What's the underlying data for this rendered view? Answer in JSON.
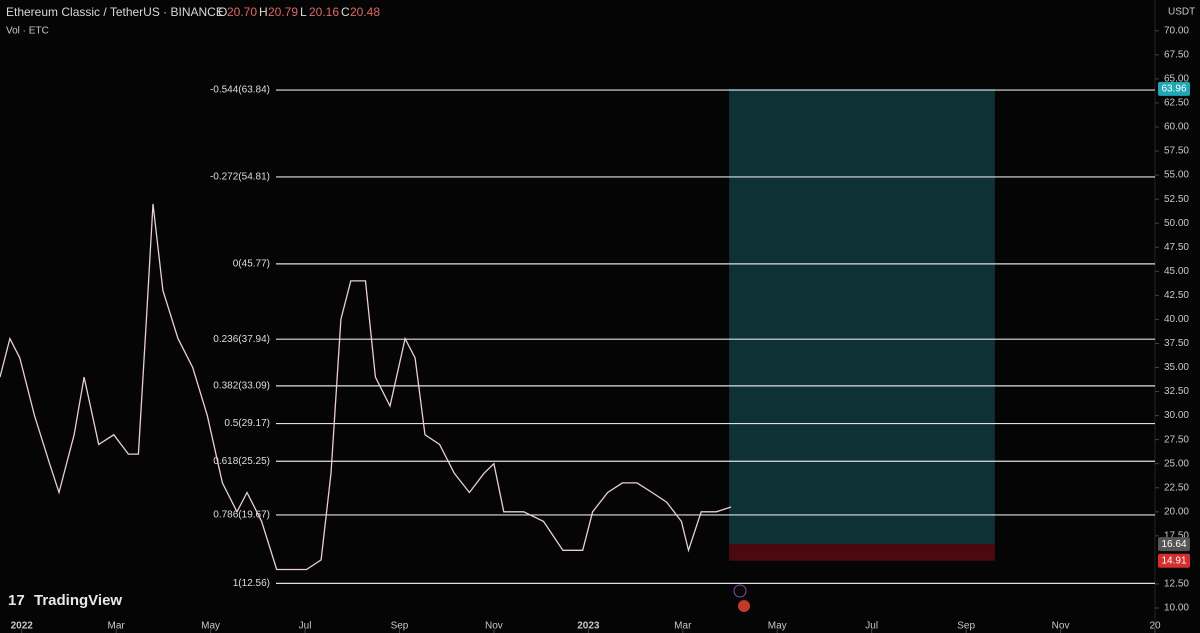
{
  "chart_data": {
    "type": "line",
    "title": "Ethereum Classic / TetherUS · BINANCE",
    "ohlc": [
      {
        "key": "O",
        "value": "20.70"
      },
      {
        "key": "H",
        "value": "20.79"
      },
      {
        "key": "L",
        "value": "20.16"
      },
      {
        "key": "C",
        "value": "20.48"
      }
    ],
    "volume_label": "Vol · ETC",
    "currency": "USDT",
    "brand": "TradingView",
    "color": "#e9cfcf",
    "x": [
      -0.46,
      -0.25,
      -0.04,
      0.27,
      0.59,
      0.79,
      1.11,
      1.32,
      1.63,
      1.95,
      2.26,
      2.47,
      2.64,
      2.78,
      2.99,
      3.31,
      3.62,
      3.93,
      4.25,
      4.56,
      4.77,
      5.08,
      5.4,
      5.71,
      6.03,
      6.34,
      6.55,
      6.76,
      6.97,
      7.28,
      7.49,
      7.8,
      8.12,
      8.33,
      8.54,
      8.85,
      9.16,
      9.48,
      9.79,
      10.0,
      10.21,
      10.63,
      11.05,
      11.46,
      11.88,
      12.09,
      12.41,
      12.72,
      13.03,
      13.35,
      13.66,
      13.97,
      14.12,
      14.39,
      14.71,
      15.02
    ],
    "values": [
      34,
      38,
      36,
      30,
      25,
      22,
      28,
      34,
      27,
      28,
      26,
      26,
      40,
      52,
      43,
      38,
      35,
      30,
      23,
      20,
      22,
      19,
      14,
      14,
      14,
      15,
      24,
      40,
      44,
      44,
      34,
      31,
      38,
      36,
      28,
      27,
      24,
      22,
      24,
      25,
      20,
      20,
      19,
      16,
      16,
      20,
      22,
      23,
      23,
      22,
      21,
      19,
      16,
      20,
      20,
      20.5
    ],
    "xlim": [
      -0.46,
      24
    ],
    "xticks": [
      {
        "value": 0,
        "label": "2022"
      },
      {
        "value": 2,
        "label": "Mar"
      },
      {
        "value": 4,
        "label": "May"
      },
      {
        "value": 6,
        "label": "Jul"
      },
      {
        "value": 8,
        "label": "Sep"
      },
      {
        "value": 10,
        "label": "Nov"
      },
      {
        "value": 12,
        "label": "2023"
      },
      {
        "value": 14,
        "label": "Mar"
      },
      {
        "value": 16,
        "label": "May"
      },
      {
        "value": 18,
        "label": "Jul"
      },
      {
        "value": 20,
        "label": "Sep"
      },
      {
        "value": 22,
        "label": "Nov"
      },
      {
        "value": 24,
        "label": "20"
      }
    ],
    "ylim": [
      7.4,
      73.2
    ],
    "yticks": [
      {
        "value": 10,
        "label": "10.00"
      },
      {
        "value": 12.5,
        "label": "12.50"
      },
      {
        "value": 17.5,
        "label": "17.50"
      },
      {
        "value": 20,
        "label": "20.00"
      },
      {
        "value": 22.5,
        "label": "22.50"
      },
      {
        "value": 25,
        "label": "25.00"
      },
      {
        "value": 27.5,
        "label": "27.50"
      },
      {
        "value": 30,
        "label": "30.00"
      },
      {
        "value": 32.5,
        "label": "32.50"
      },
      {
        "value": 35,
        "label": "35.00"
      },
      {
        "value": 37.5,
        "label": "37.50"
      },
      {
        "value": 40,
        "label": "40.00"
      },
      {
        "value": 42.5,
        "label": "42.50"
      },
      {
        "value": 45,
        "label": "45.00"
      },
      {
        "value": 47.5,
        "label": "47.50"
      },
      {
        "value": 50,
        "label": "50.00"
      },
      {
        "value": 52.5,
        "label": "52.50"
      },
      {
        "value": 55,
        "label": "55.00"
      },
      {
        "value": 57.5,
        "label": "57.50"
      },
      {
        "value": 60,
        "label": "60.00"
      },
      {
        "value": 62.5,
        "label": "62.50"
      },
      {
        "value": 65,
        "label": "65.00"
      },
      {
        "value": 67.5,
        "label": "67.50"
      },
      {
        "value": 70,
        "label": "70.00"
      }
    ],
    "fib_levels": [
      {
        "value": 63.84,
        "label": "-0.544(63.84)"
      },
      {
        "value": 54.81,
        "label": "-0.272(54.81)"
      },
      {
        "value": 45.77,
        "label": "0(45.77)"
      },
      {
        "value": 37.94,
        "label": "0.236(37.94)"
      },
      {
        "value": 33.09,
        "label": "0.382(33.09)"
      },
      {
        "value": 29.17,
        "label": "0.5(29.17)"
      },
      {
        "value": 25.25,
        "label": "0.618(25.25)"
      },
      {
        "value": 19.67,
        "label": "0.786(19.67)"
      },
      {
        "value": 12.56,
        "label": "1(12.56)"
      }
    ],
    "position": {
      "start": 14.98,
      "end": 20.61,
      "target": 63.96,
      "entry": 16.64,
      "stop": 14.91
    }
  }
}
